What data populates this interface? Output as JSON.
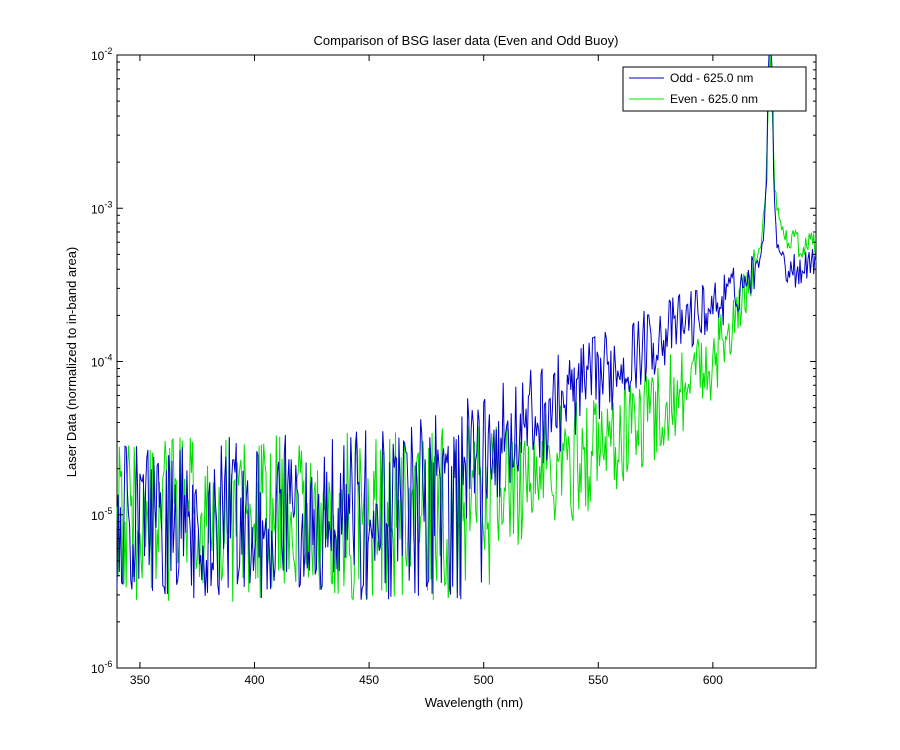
{
  "chart_data": {
    "type": "line",
    "title": "Comparison of BSG laser data (Even and Odd Buoy)",
    "xlabel": "Wavelength (nm)",
    "ylabel": "Laser Data (normalized to in-band area)",
    "xlim": [
      340,
      645
    ],
    "ylim": [
      1e-06,
      0.01
    ],
    "yscale": "log",
    "xticks": [
      350,
      400,
      450,
      500,
      550,
      600
    ],
    "yticks": [
      {
        "value": 1e-06,
        "base": "10",
        "exp": "-6"
      },
      {
        "value": 1e-05,
        "base": "10",
        "exp": "-5"
      },
      {
        "value": 0.0001,
        "base": "10",
        "exp": "-4"
      },
      {
        "value": 0.001,
        "base": "10",
        "exp": "-3"
      },
      {
        "value": 0.01,
        "base": "10",
        "exp": "-2"
      }
    ],
    "grid": false,
    "legend_position": "top-right",
    "series": [
      {
        "name": "Odd - 625.0 nm",
        "color": "#0000c8",
        "noise_floor": 5e-06,
        "points": [
          [
            340,
            1e-05
          ],
          [
            360,
            1.05e-05
          ],
          [
            380,
            1.1e-05
          ],
          [
            400,
            1.1e-05
          ],
          [
            420,
            1.15e-05
          ],
          [
            440,
            1.2e-05
          ],
          [
            460,
            1.3e-05
          ],
          [
            470,
            1.6e-05
          ],
          [
            480,
            1.9e-05
          ],
          [
            490,
            2.2e-05
          ],
          [
            500,
            2.7e-05
          ],
          [
            510,
            3.3e-05
          ],
          [
            520,
            4e-05
          ],
          [
            530,
            5e-05
          ],
          [
            540,
            6.2e-05
          ],
          [
            550,
            7.8e-05
          ],
          [
            560,
            9.8e-05
          ],
          [
            570,
            0.000125
          ],
          [
            580,
            0.000155
          ],
          [
            590,
            0.00019
          ],
          [
            600,
            0.00023
          ],
          [
            610,
            0.00029
          ],
          [
            615,
            0.00034
          ],
          [
            620,
            0.00044
          ],
          [
            622,
            0.00065
          ],
          [
            623.5,
            0.0016
          ],
          [
            624.3,
            0.015
          ],
          [
            625,
            0.015
          ],
          [
            625.7,
            0.015
          ],
          [
            626.5,
            0.0016
          ],
          [
            628,
            0.0006
          ],
          [
            632,
            0.00042
          ],
          [
            636,
            0.0004
          ],
          [
            640,
            0.00043
          ],
          [
            645,
            0.00048
          ]
        ]
      },
      {
        "name": "Even - 625.0 nm",
        "color": "#00e000",
        "noise_floor": 5e-06,
        "points": [
          [
            340,
            1.1e-05
          ],
          [
            360,
            1.1e-05
          ],
          [
            380,
            1.1e-05
          ],
          [
            400,
            1.15e-05
          ],
          [
            420,
            1.15e-05
          ],
          [
            440,
            1.2e-05
          ],
          [
            460,
            1.25e-05
          ],
          [
            480,
            1.35e-05
          ],
          [
            490,
            1.4e-05
          ],
          [
            500,
            1.45e-05
          ],
          [
            510,
            1.6e-05
          ],
          [
            520,
            1.75e-05
          ],
          [
            530,
            2e-05
          ],
          [
            540,
            2.3e-05
          ],
          [
            550,
            2.7e-05
          ],
          [
            560,
            3.3e-05
          ],
          [
            570,
            4.2e-05
          ],
          [
            580,
            5.5e-05
          ],
          [
            590,
            7.5e-05
          ],
          [
            600,
            0.000105
          ],
          [
            610,
            0.00018
          ],
          [
            615,
            0.0003
          ],
          [
            618,
            0.00042
          ],
          [
            621,
            0.0006
          ],
          [
            623,
            0.0012
          ],
          [
            624,
            0.004
          ],
          [
            625,
            0.013
          ],
          [
            626,
            0.004
          ],
          [
            627,
            0.0014
          ],
          [
            629,
            0.0008
          ],
          [
            632,
            0.00065
          ],
          [
            636,
            0.00058
          ],
          [
            640,
            0.00055
          ],
          [
            645,
            0.00055
          ]
        ]
      }
    ]
  }
}
